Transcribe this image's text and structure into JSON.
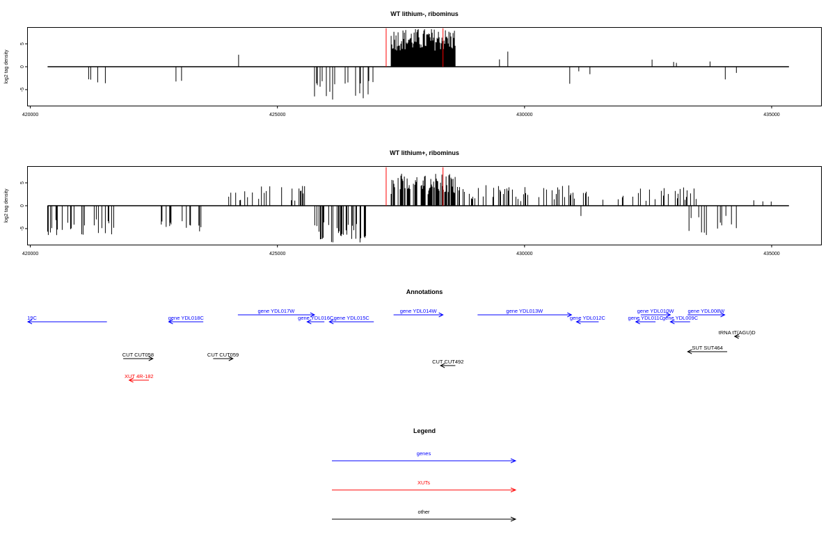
{
  "chart_data": [
    {
      "type": "bar",
      "title": "WT lithium-, ribominus",
      "ylabel": "log2 tag density",
      "xlabel": "",
      "xlim": [
        419950,
        436000
      ],
      "ylim": [
        -8.5,
        8.5
      ],
      "x_ticks": [
        420000,
        425000,
        430000,
        435000
      ],
      "y_ticks": [
        5,
        0,
        -5
      ],
      "x_tick_labels": [
        "420000",
        "425000",
        "430000",
        "435000"
      ],
      "y_tick_labels": [
        "5",
        "0",
        "-5"
      ],
      "baseline": {
        "x": [
          420350,
          435350
        ],
        "y": 0
      },
      "red_markers": [
        427200,
        428350
      ],
      "segments": [
        {
          "start": 420350,
          "end": 421700,
          "strand": "-",
          "min": 2.2,
          "max": 4.4,
          "density": 0.06
        },
        {
          "start": 422750,
          "end": 423500,
          "strand": "-",
          "min": 2.4,
          "max": 5.0,
          "density": 0.06
        },
        {
          "start": 424200,
          "end": 425600,
          "strand": "+",
          "min": 0.8,
          "max": 3.8,
          "density": 0.025
        },
        {
          "start": 425750,
          "end": 426950,
          "strand": "-",
          "min": 3.0,
          "max": 7.2,
          "density": 0.25
        },
        {
          "start": 427300,
          "end": 428600,
          "strand": "+",
          "min": 3.5,
          "max": 8.4,
          "density": 1.0
        },
        {
          "start": 429000,
          "end": 430900,
          "strand": "+",
          "min": 0.8,
          "max": 3.4,
          "density": 0.02
        },
        {
          "start": 430900,
          "end": 431350,
          "strand": "-",
          "min": 1.0,
          "max": 3.8,
          "density": 0.03
        },
        {
          "start": 432200,
          "end": 433400,
          "strand": "+",
          "min": 0.8,
          "max": 3.2,
          "density": 0.02
        },
        {
          "start": 433400,
          "end": 434300,
          "strand": "-",
          "min": 1.0,
          "max": 4.0,
          "density": 0.03
        },
        {
          "start": 433500,
          "end": 434300,
          "strand": "+",
          "min": 1.0,
          "max": 4.0,
          "density": 0.03
        }
      ]
    },
    {
      "type": "bar",
      "title": "WT lithium+, ribominus",
      "ylabel": "log2 tag density",
      "xlabel": "",
      "xlim": [
        419950,
        436000
      ],
      "ylim": [
        -8.5,
        8.5
      ],
      "x_ticks": [
        420000,
        425000,
        430000,
        435000
      ],
      "y_ticks": [
        5,
        0,
        -5
      ],
      "x_tick_labels": [
        "420000",
        "425000",
        "430000",
        "435000"
      ],
      "y_tick_labels": [
        "5",
        "0",
        "-5"
      ],
      "baseline": {
        "x": [
          420350,
          435350
        ],
        "y": 0
      },
      "red_markers": [
        427200,
        428350
      ],
      "segments": [
        {
          "start": 420350,
          "end": 421700,
          "strand": "-",
          "min": 3.0,
          "max": 6.5,
          "density": 0.25
        },
        {
          "start": 422650,
          "end": 423550,
          "strand": "-",
          "min": 3.0,
          "max": 6.0,
          "density": 0.25
        },
        {
          "start": 424000,
          "end": 425600,
          "strand": "+",
          "min": 1.0,
          "max": 4.5,
          "density": 0.12
        },
        {
          "start": 425700,
          "end": 426950,
          "strand": "-",
          "min": 3.5,
          "max": 8.0,
          "density": 0.35
        },
        {
          "start": 427300,
          "end": 428600,
          "strand": "+",
          "min": 2.5,
          "max": 7.0,
          "density": 0.7
        },
        {
          "start": 428600,
          "end": 433700,
          "strand": "+",
          "min": 1.0,
          "max": 4.5,
          "density": 0.18
        },
        {
          "start": 431000,
          "end": 431500,
          "strand": "-",
          "min": 1.0,
          "max": 3.0,
          "density": 0.04
        },
        {
          "start": 433300,
          "end": 434300,
          "strand": "-",
          "min": 2.0,
          "max": 6.5,
          "density": 0.12
        },
        {
          "start": 434300,
          "end": 435350,
          "strand": "+",
          "min": 0.8,
          "max": 2.5,
          "density": 0.01
        }
      ]
    },
    {
      "type": "gene-track",
      "title": "Annotations",
      "features": [
        {
          "label": "19C",
          "type": "gene",
          "strand": "-",
          "start": 419950,
          "end": 421550,
          "row": 1,
          "color": "#0000ff"
        },
        {
          "label": "gene YDL018C",
          "type": "gene",
          "strand": "-",
          "start": 422800,
          "end": 423500,
          "row": 1,
          "color": "#0000ff"
        },
        {
          "label": "gene YDL017W",
          "type": "gene",
          "strand": "+",
          "start": 424200,
          "end": 425750,
          "row": 0,
          "color": "#0000ff"
        },
        {
          "label": "gene YDL016C",
          "type": "gene",
          "strand": "-",
          "start": 425600,
          "end": 425950,
          "row": 1,
          "color": "#0000ff"
        },
        {
          "label": "gene YDL015C",
          "type": "gene",
          "strand": "-",
          "start": 426050,
          "end": 426950,
          "row": 1,
          "color": "#0000ff"
        },
        {
          "label": "gene YDL014W",
          "type": "gene",
          "strand": "+",
          "start": 427350,
          "end": 428350,
          "row": 0,
          "color": "#0000ff"
        },
        {
          "label": "gene YDL013W",
          "type": "gene",
          "strand": "+",
          "start": 429050,
          "end": 430950,
          "row": 0,
          "color": "#0000ff"
        },
        {
          "label": "gene YDL012C",
          "type": "gene",
          "strand": "-",
          "start": 431050,
          "end": 431500,
          "row": 1,
          "color": "#0000ff"
        },
        {
          "label": "gene YDL010W",
          "type": "gene",
          "strand": "+",
          "start": 432350,
          "end": 432950,
          "row": 0,
          "color": "#0000ff"
        },
        {
          "label": "gene YDL011C",
          "type": "gene",
          "strand": "-",
          "start": 432250,
          "end": 432650,
          "row": 1,
          "color": "#0000ff"
        },
        {
          "label": "gene YDL009C",
          "type": "gene",
          "strand": "-",
          "start": 432950,
          "end": 433350,
          "row": 1,
          "color": "#0000ff"
        },
        {
          "label": "gene YDL008W",
          "type": "gene",
          "strand": "+",
          "start": 433300,
          "end": 434050,
          "row": 0,
          "color": "#0000ff"
        },
        {
          "label": "tRNA tT(AGU)D",
          "type": "other",
          "strand": "-",
          "start": 434250,
          "end": 434350,
          "row": 2,
          "color": "#000000"
        },
        {
          "label": "SUT SUT464",
          "type": "other",
          "strand": "-",
          "start": 433300,
          "end": 434100,
          "row": 3,
          "color": "#000000"
        },
        {
          "label": "CUT CUT058",
          "type": "other",
          "strand": "+",
          "start": 421880,
          "end": 422480,
          "row": 4,
          "color": "#000000"
        },
        {
          "label": "CUT CUT059",
          "type": "other",
          "strand": "+",
          "start": 423700,
          "end": 424100,
          "row": 4,
          "color": "#000000"
        },
        {
          "label": "CUT CUT492",
          "type": "other",
          "strand": "-",
          "start": 428300,
          "end": 428600,
          "row": 5,
          "color": "#000000"
        },
        {
          "label": "XUT 4R-182",
          "type": "xut",
          "strand": "-",
          "start": 422000,
          "end": 422400,
          "row": 6,
          "color": "#ff0000"
        }
      ]
    },
    {
      "type": "legend",
      "title": "Legend",
      "entries": [
        {
          "label": "genes",
          "color": "#0000ff"
        },
        {
          "label": "XUTs",
          "color": "#ff0000"
        },
        {
          "label": "other",
          "color": "#000000"
        }
      ]
    }
  ]
}
